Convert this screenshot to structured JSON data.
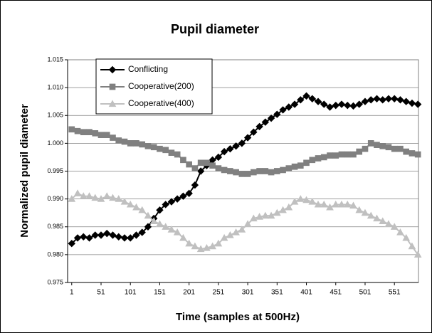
{
  "chart_data": {
    "type": "line",
    "title": "Pupil diameter",
    "x_label": "Time (samples at 500Hz)",
    "y_label": "Normalized pupil diameter",
    "x": [
      1,
      11,
      21,
      31,
      41,
      51,
      61,
      71,
      81,
      91,
      101,
      111,
      121,
      131,
      141,
      151,
      161,
      171,
      181,
      191,
      201,
      211,
      221,
      231,
      241,
      251,
      261,
      271,
      281,
      291,
      301,
      311,
      321,
      331,
      341,
      351,
      361,
      371,
      381,
      391,
      401,
      411,
      421,
      431,
      441,
      451,
      461,
      471,
      481,
      491,
      501,
      511,
      521,
      531,
      541,
      551,
      561,
      571,
      581,
      591
    ],
    "xlim": [
      -6,
      592
    ],
    "xticks": [
      1,
      51,
      101,
      151,
      201,
      251,
      301,
      351,
      401,
      451,
      501,
      551
    ],
    "ylim": [
      0.975,
      1.015
    ],
    "yticks": [
      0.975,
      {
        "value": 0.98,
        "label": "0.980"
      },
      0.985,
      {
        "value": 0.99,
        "label": "0.990"
      },
      0.995,
      {
        "value": 1,
        "label": "1.000"
      },
      1.005,
      {
        "value": 1.01,
        "label": "1.010"
      },
      1.015
    ],
    "grid": true,
    "series": [
      {
        "name": "Conflicting",
        "color": "#000000",
        "marker": "diamond",
        "values": [
          0.982,
          0.983,
          0.9832,
          0.983,
          0.9835,
          0.9835,
          0.9838,
          0.9835,
          0.9832,
          0.983,
          0.983,
          0.9835,
          0.984,
          0.985,
          0.9865,
          0.988,
          0.989,
          0.9895,
          0.99,
          0.9905,
          0.991,
          0.9925,
          0.995,
          0.996,
          0.997,
          0.9975,
          0.9985,
          0.999,
          0.9995,
          1.0,
          1.001,
          1.002,
          1.003,
          1.0038,
          1.0045,
          1.0052,
          1.006,
          1.0065,
          1.007,
          1.0078,
          1.0085,
          1.008,
          1.0075,
          1.007,
          1.0065,
          1.0068,
          1.007,
          1.0068,
          1.0067,
          1.007,
          1.0075,
          1.0078,
          1.008,
          1.0078,
          1.008,
          1.008,
          1.0078,
          1.0075,
          1.0072,
          1.007
        ]
      },
      {
        "name": "Cooperative(200)",
        "color": "#808080",
        "marker": "square",
        "values": [
          1.0025,
          1.0022,
          1.002,
          1.002,
          1.0018,
          1.0015,
          1.0015,
          1.001,
          1.0005,
          1.0003,
          1.0,
          1.0,
          0.9998,
          0.9995,
          0.9993,
          0.999,
          0.9988,
          0.9983,
          0.998,
          0.997,
          0.9962,
          0.9955,
          0.9965,
          0.9965,
          0.996,
          0.9955,
          0.9952,
          0.995,
          0.9948,
          0.9945,
          0.9945,
          0.9948,
          0.995,
          0.995,
          0.9948,
          0.995,
          0.9952,
          0.9955,
          0.9958,
          0.996,
          0.9965,
          0.997,
          0.9973,
          0.9975,
          0.9978,
          0.9978,
          0.998,
          0.998,
          0.998,
          0.9985,
          0.999,
          1.0,
          0.9997,
          0.9995,
          0.9993,
          0.999,
          0.999,
          0.9985,
          0.9982,
          0.998
        ]
      },
      {
        "name": "Cooperative(400)",
        "color": "#c0c0c0",
        "marker": "triangle",
        "values": [
          0.99,
          0.991,
          0.9905,
          0.9905,
          0.9902,
          0.99,
          0.9905,
          0.9902,
          0.99,
          0.9895,
          0.989,
          0.9885,
          0.988,
          0.987,
          0.986,
          0.9855,
          0.985,
          0.9845,
          0.984,
          0.983,
          0.982,
          0.9815,
          0.981,
          0.9812,
          0.9815,
          0.982,
          0.983,
          0.9835,
          0.984,
          0.9845,
          0.9855,
          0.9865,
          0.9868,
          0.987,
          0.987,
          0.9875,
          0.988,
          0.9885,
          0.9895,
          0.99,
          0.9898,
          0.9895,
          0.989,
          0.989,
          0.9885,
          0.989,
          0.989,
          0.989,
          0.9888,
          0.988,
          0.9875,
          0.987,
          0.9865,
          0.986,
          0.9855,
          0.985,
          0.984,
          0.983,
          0.9815,
          0.98
        ]
      }
    ]
  }
}
